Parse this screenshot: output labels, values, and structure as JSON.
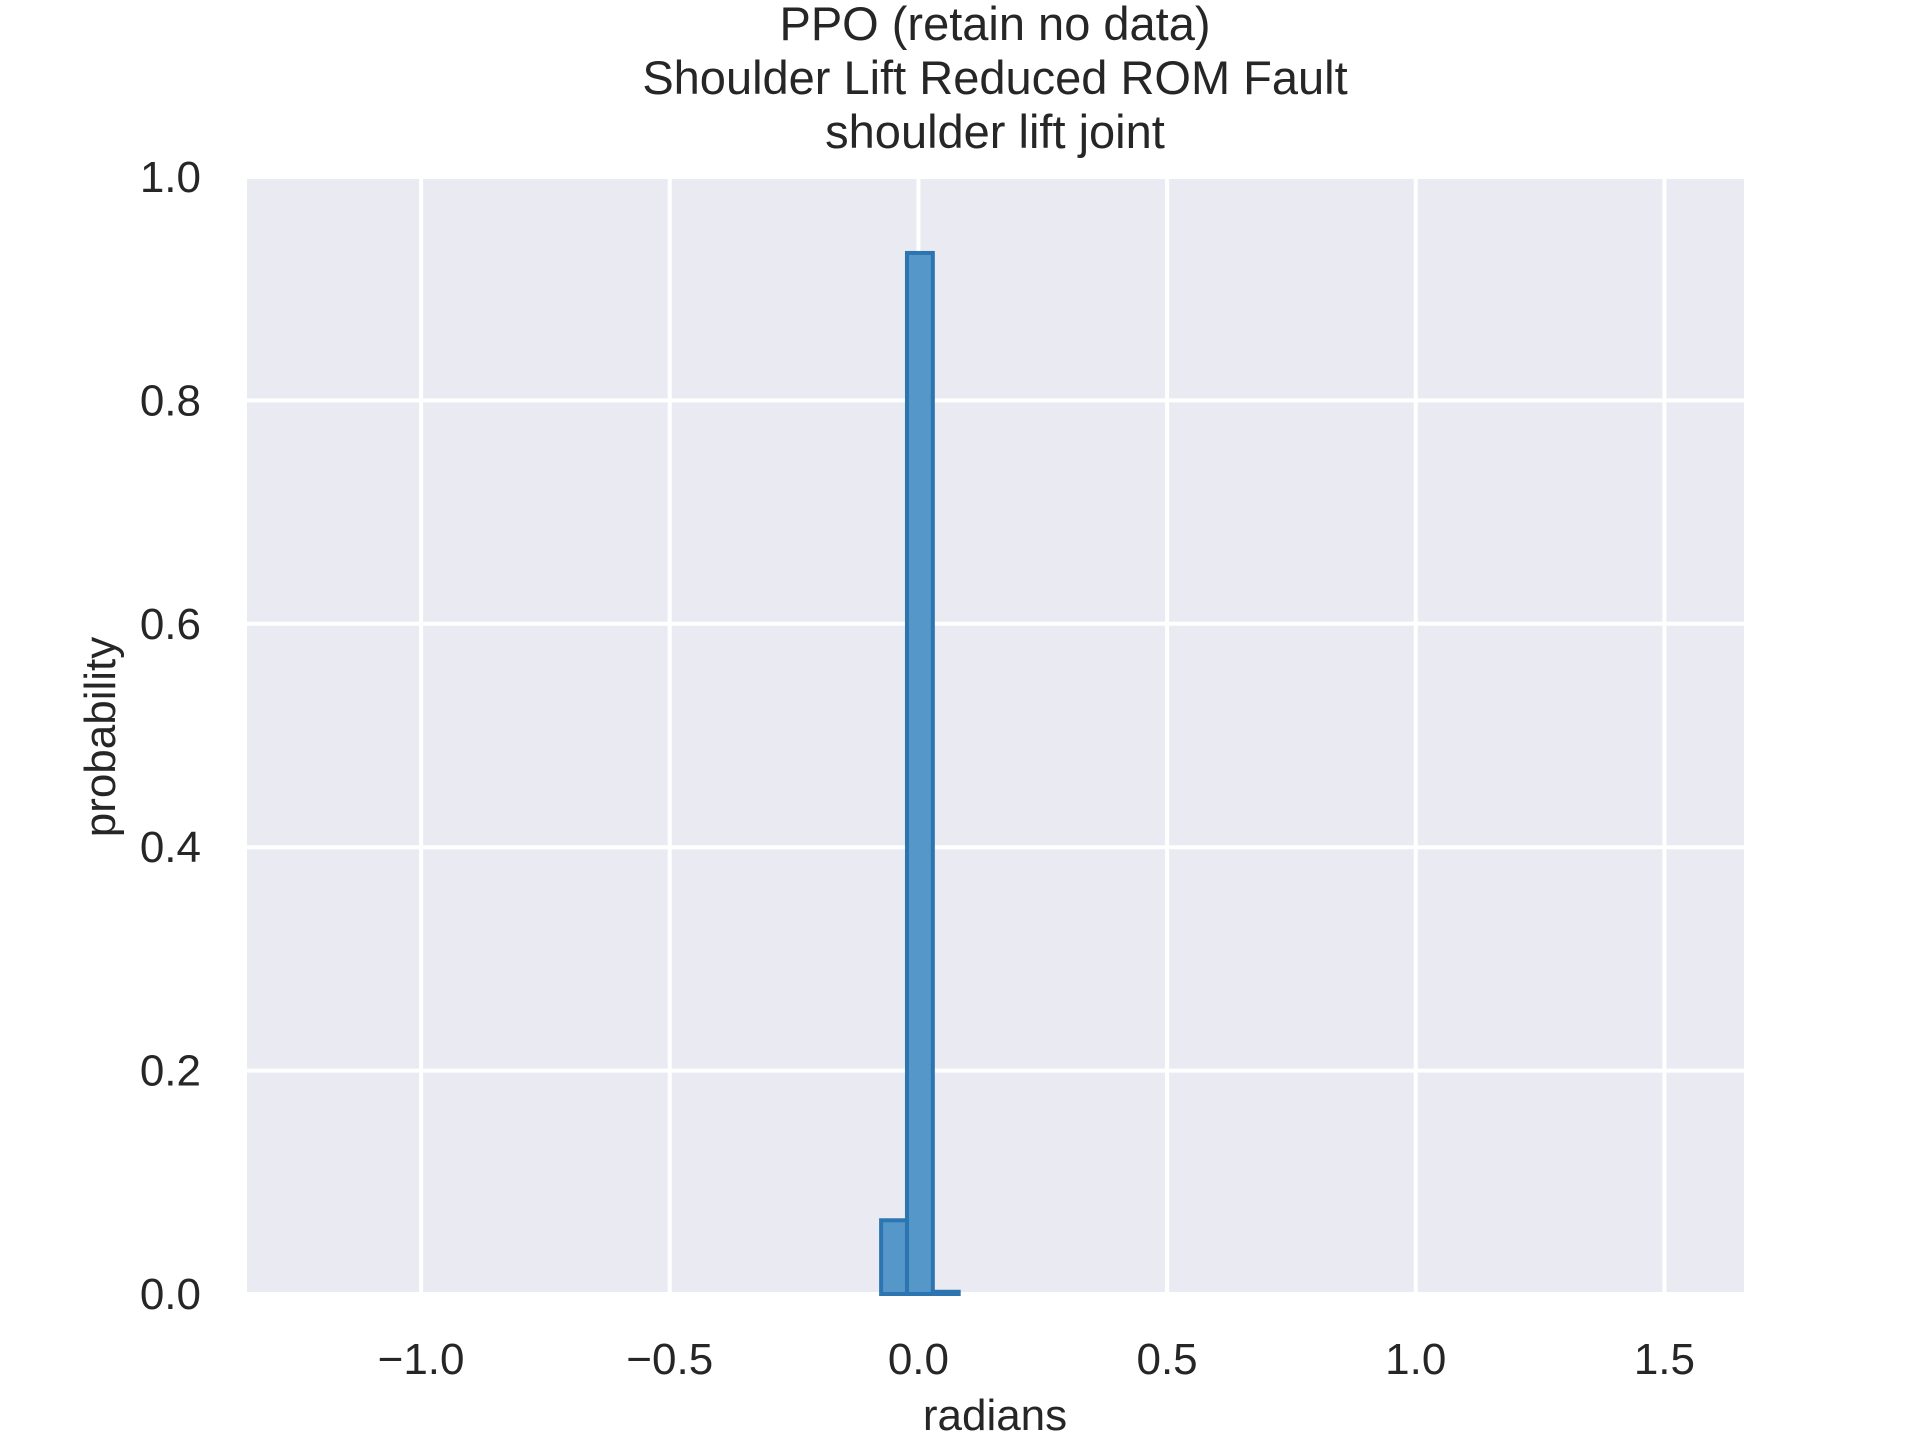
{
  "chart_data": {
    "type": "bar",
    "title_lines": [
      "PPO (retain no data)",
      "Shoulder Lift Reduced ROM Fault",
      "shoulder lift joint"
    ],
    "xlabel": "radians",
    "ylabel": "probability",
    "xlim": [
      -1.35,
      1.66
    ],
    "ylim": [
      0.0,
      1.0
    ],
    "x_ticks": [
      -1.0,
      -0.5,
      0.0,
      0.5,
      1.0,
      1.5
    ],
    "x_tick_labels": [
      "−1.0",
      "−0.5",
      "0.0",
      "0.5",
      "1.0",
      "1.5"
    ],
    "y_ticks": [
      0.0,
      0.2,
      0.4,
      0.6,
      0.8,
      1.0
    ],
    "y_tick_labels": [
      "0.0",
      "0.2",
      "0.4",
      "0.6",
      "0.8",
      "1.0"
    ],
    "grid": true,
    "bin_width": 0.052,
    "bins": [
      {
        "x0": -0.075,
        "x1": -0.023,
        "value": 0.066
      },
      {
        "x0": -0.023,
        "x1": 0.029,
        "value": 0.932
      },
      {
        "x0": 0.029,
        "x1": 0.081,
        "value": 0.002
      }
    ],
    "colors": {
      "background": "#eaeaf2",
      "bar_fill": "#5597c9",
      "bar_edge": "#2c75b0",
      "grid": "#ffffff",
      "text": "#262626"
    }
  }
}
